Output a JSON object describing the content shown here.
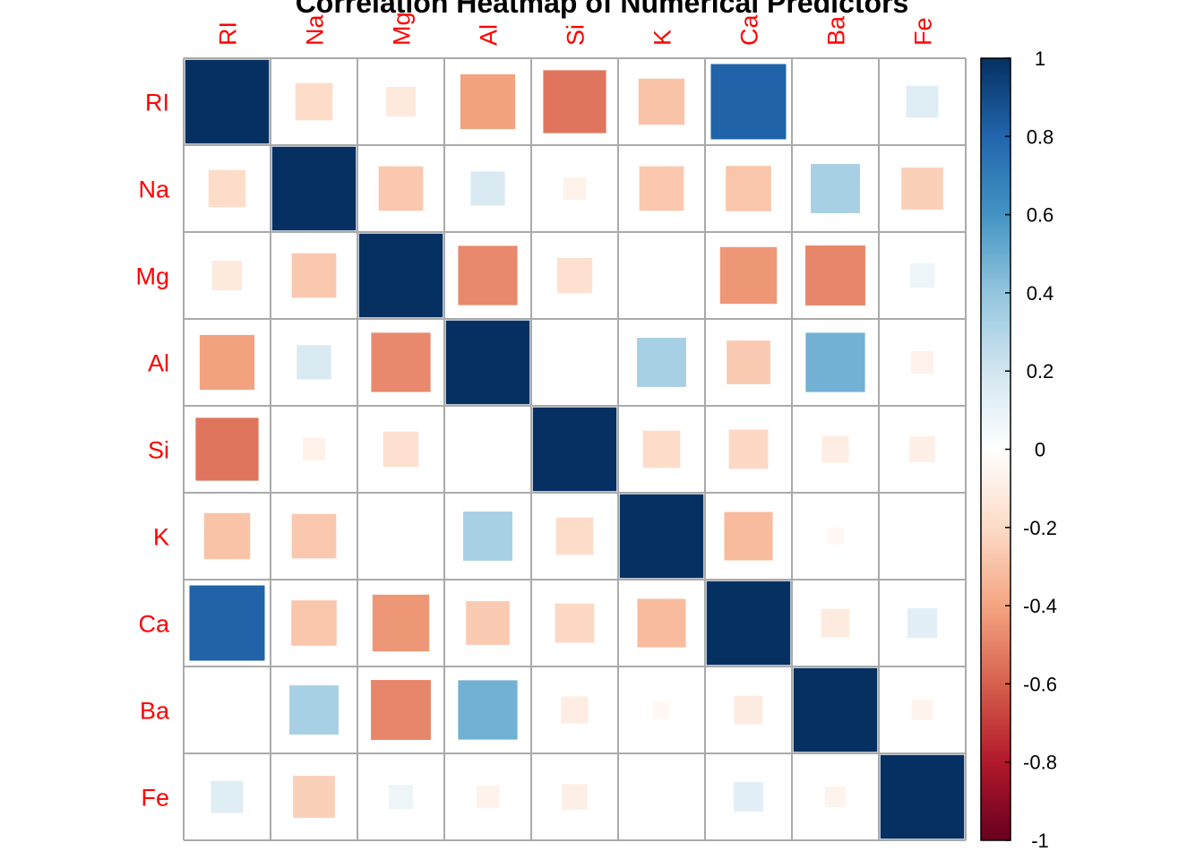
{
  "chart_data": {
    "type": "heatmap",
    "title": "Correlation Heatmap of Numerical Predictors",
    "variables": [
      "RI",
      "Na",
      "Mg",
      "Al",
      "Si",
      "K",
      "Ca",
      "Ba",
      "Fe"
    ],
    "matrix": [
      [
        1.0,
        -0.19,
        -0.12,
        -0.41,
        -0.54,
        -0.29,
        0.81,
        0.0,
        0.14
      ],
      [
        -0.19,
        1.0,
        -0.27,
        0.16,
        -0.07,
        -0.27,
        -0.28,
        0.33,
        -0.24
      ],
      [
        -0.12,
        -0.27,
        1.0,
        -0.48,
        -0.17,
        0.0,
        -0.44,
        -0.49,
        0.08
      ],
      [
        -0.41,
        0.16,
        -0.48,
        1.0,
        0.0,
        0.33,
        -0.26,
        0.48,
        -0.07
      ],
      [
        -0.54,
        -0.07,
        -0.17,
        0.0,
        1.0,
        -0.19,
        -0.21,
        -0.1,
        -0.09
      ],
      [
        -0.29,
        -0.27,
        0.0,
        0.33,
        -0.19,
        1.0,
        -0.32,
        -0.04,
        0.0
      ],
      [
        0.81,
        -0.28,
        -0.44,
        -0.26,
        -0.21,
        -0.32,
        1.0,
        -0.11,
        0.12
      ],
      [
        0.0,
        0.33,
        -0.49,
        0.48,
        -0.1,
        -0.04,
        -0.11,
        1.0,
        -0.06
      ],
      [
        0.14,
        -0.24,
        0.08,
        -0.07,
        -0.09,
        0.0,
        0.12,
        -0.06,
        1.0
      ]
    ],
    "colorbar": {
      "range": [
        -1,
        1
      ],
      "ticks": [
        "1",
        "0.8",
        "0.6",
        "0.4",
        "0.2",
        "0",
        "-0.2",
        "-0.4",
        "-0.6",
        "-0.8",
        "-1"
      ]
    },
    "label_color": "#ff0000",
    "grid_color": "#aaaaaa"
  }
}
